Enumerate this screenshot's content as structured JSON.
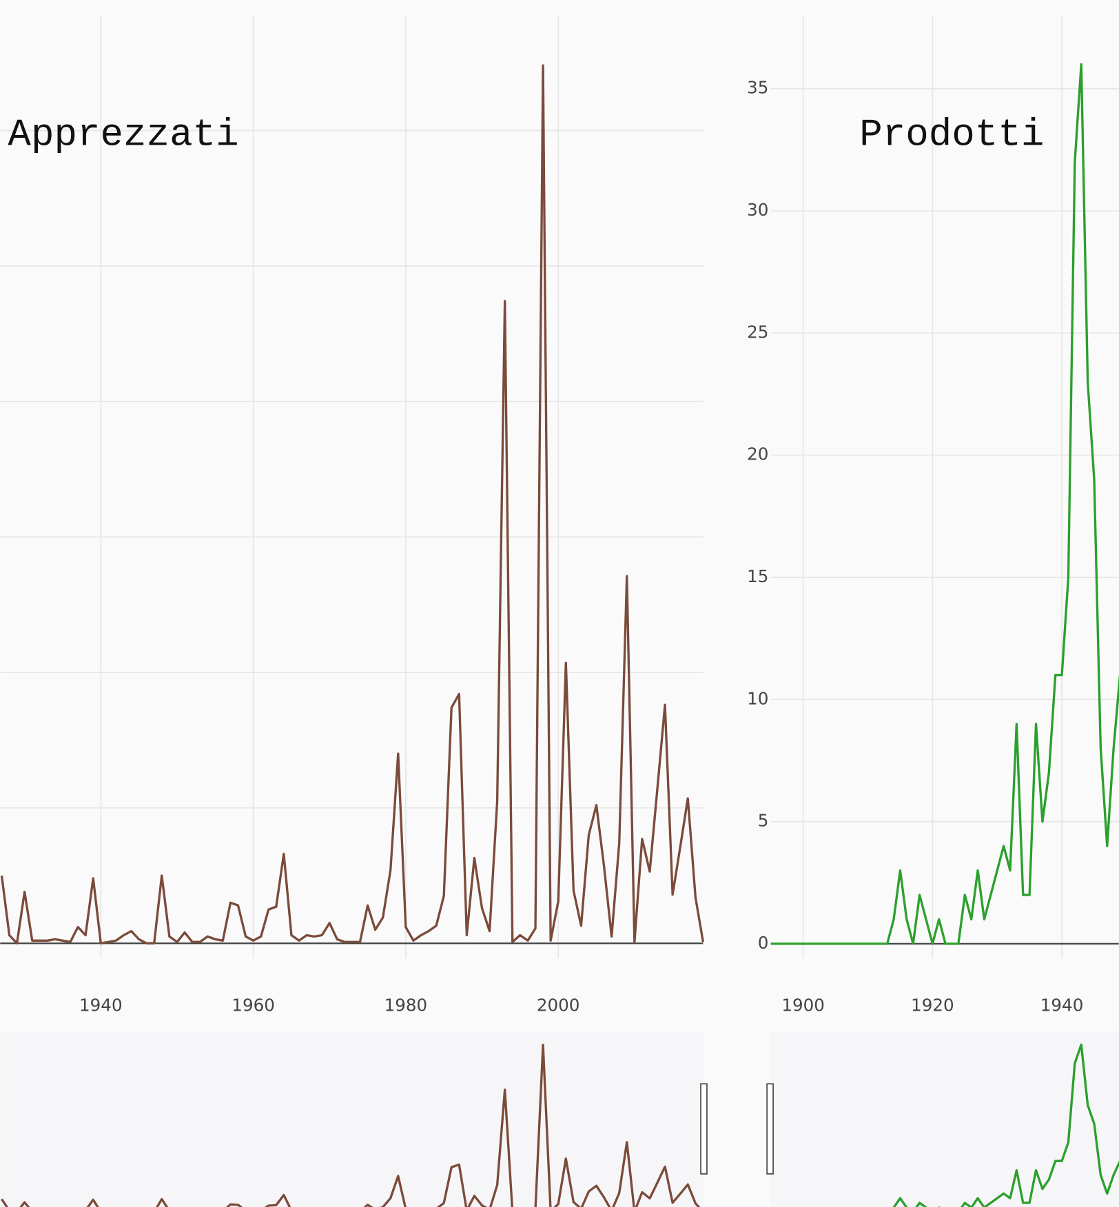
{
  "chart_data": [
    {
      "type": "line",
      "title": "Apprezzati",
      "color": "#7b4b3a",
      "x": [
        1927,
        1928,
        1929,
        1930,
        1931,
        1932,
        1933,
        1934,
        1935,
        1936,
        1937,
        1938,
        1939,
        1940,
        1941,
        1942,
        1943,
        1944,
        1945,
        1946,
        1947,
        1948,
        1949,
        1950,
        1951,
        1952,
        1953,
        1954,
        1955,
        1956,
        1957,
        1958,
        1959,
        1960,
        1961,
        1962,
        1963,
        1964,
        1965,
        1966,
        1967,
        1968,
        1969,
        1970,
        1971,
        1972,
        1973,
        1974,
        1975,
        1976,
        1977,
        1978,
        1979,
        1980,
        1981,
        1982,
        1983,
        1984,
        1985,
        1986,
        1987,
        1988,
        1989,
        1990,
        1991,
        1992,
        1993,
        1994,
        1995,
        1996,
        1997,
        1998,
        1999,
        2000,
        2001,
        2002,
        2003,
        2004,
        2005,
        2006,
        2007,
        2008,
        2009,
        2010,
        2011,
        2012,
        2013,
        2014,
        2015,
        2016,
        2017,
        2018,
        2019
      ],
      "values": [
        5.0,
        0.6,
        0,
        3.8,
        0.2,
        0.2,
        0.2,
        0.3,
        0.2,
        0.1,
        1.2,
        0.6,
        4.8,
        0,
        0.1,
        0.2,
        0.6,
        0.9,
        0.3,
        0,
        0,
        5.0,
        0.5,
        0.1,
        0.8,
        0.1,
        0.1,
        0.5,
        0.3,
        0.2,
        3.0,
        2.8,
        0.5,
        0.2,
        0.5,
        2.5,
        2.7,
        6.6,
        0.6,
        0.2,
        0.6,
        0.5,
        0.6,
        1.5,
        0.3,
        0.1,
        0.1,
        0.1,
        2.8,
        1.0,
        1.9,
        5.4,
        14.0,
        1.2,
        0.2,
        0.6,
        0.9,
        1.3,
        3.5,
        17.4,
        18.4,
        0.6,
        6.3,
        2.6,
        0.9,
        10.5,
        47.4,
        0.1,
        0.6,
        0.2,
        1.1,
        64.8,
        0.2,
        3.1,
        20.7,
        3.9,
        1.3,
        8.0,
        10.2,
        5.7,
        0.5,
        7.4,
        27.1,
        0.1,
        7.7,
        5.3,
        11.4,
        17.6,
        3.6,
        7.1,
        10.7,
        3.4,
        0.1
      ],
      "xlim": [
        1927,
        2019
      ],
      "xticks": [
        1940,
        1960,
        1980,
        2000
      ],
      "ylim": [
        -3.1,
        68.5
      ],
      "yticks": [
        0,
        10,
        20,
        30,
        40,
        50,
        60
      ],
      "grid": true
    },
    {
      "type": "line",
      "title": "Prodotti",
      "color": "#2ca02c",
      "x": [
        1895,
        1896,
        1897,
        1898,
        1899,
        1900,
        1901,
        1902,
        1903,
        1904,
        1905,
        1906,
        1907,
        1908,
        1909,
        1910,
        1911,
        1912,
        1913,
        1914,
        1915,
        1916,
        1917,
        1918,
        1919,
        1920,
        1921,
        1922,
        1923,
        1924,
        1925,
        1926,
        1927,
        1928,
        1929,
        1930,
        1931,
        1932,
        1933,
        1934,
        1935,
        1936,
        1937,
        1938,
        1939,
        1940,
        1941,
        1942,
        1943,
        1944,
        1945,
        1946,
        1947,
        1948,
        1949
      ],
      "values": [
        0,
        0,
        0,
        0,
        0,
        0,
        0,
        0,
        0,
        0,
        0,
        0,
        0,
        0,
        0,
        0,
        0,
        0,
        0,
        1,
        3,
        1,
        0,
        2,
        1,
        0,
        1,
        0,
        0,
        0,
        2,
        1,
        3,
        1,
        2,
        3,
        4,
        3,
        9,
        2,
        2,
        9,
        5,
        7,
        11,
        11,
        15,
        32,
        36,
        23,
        19,
        8,
        4,
        8,
        11
      ],
      "xlim": [
        1895,
        1950
      ],
      "xticks": [
        1900,
        1920,
        1940
      ],
      "ylim": [
        -1.7,
        38
      ],
      "yticks": [
        0,
        5,
        10,
        15,
        20,
        25,
        30,
        35
      ],
      "grid": true
    }
  ]
}
